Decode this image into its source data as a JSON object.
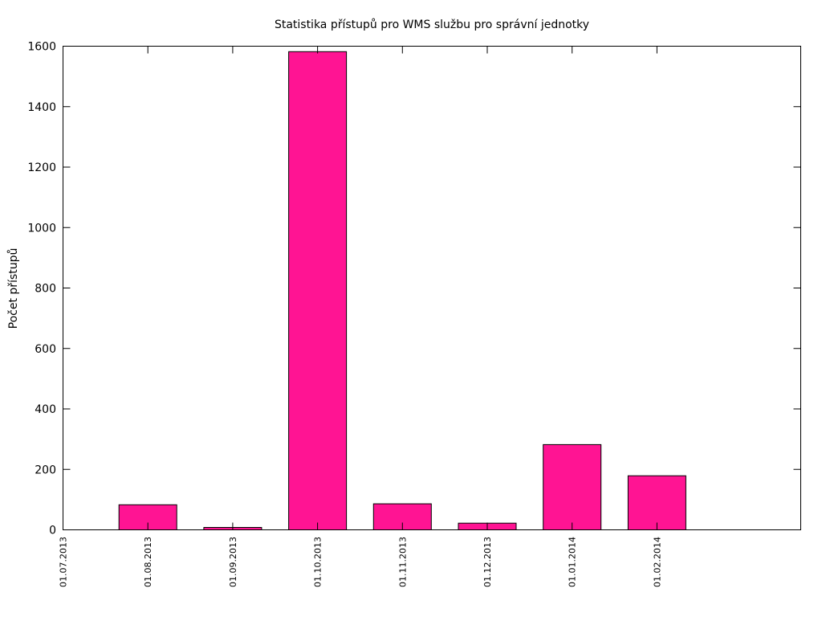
{
  "chart_data": {
    "type": "bar",
    "title": "Statistika přístupů pro WMS službu pro správní jednotky",
    "xlabel": "",
    "ylabel": "Počet přístupů",
    "x_tick_labels": [
      "01.07.2013",
      "01.08.2013",
      "01.09.2013",
      "01.10.2013",
      "01.11.2013",
      "01.12.2013",
      "01.01.2014",
      "01.02.2014"
    ],
    "categories": [
      "01.08.2013",
      "01.09.2013",
      "01.10.2013",
      "01.11.2013",
      "01.12.2013",
      "01.01.2014",
      "01.02.2014"
    ],
    "values": [
      83,
      8,
      1582,
      86,
      22,
      282,
      179
    ],
    "y_ticks": [
      "0",
      "200",
      "400",
      "600",
      "800",
      "1000",
      "1200",
      "1400",
      "1600"
    ],
    "ylim": [
      0,
      1600
    ],
    "grid": false,
    "legend": "none",
    "bar_color": "#ff1493"
  }
}
